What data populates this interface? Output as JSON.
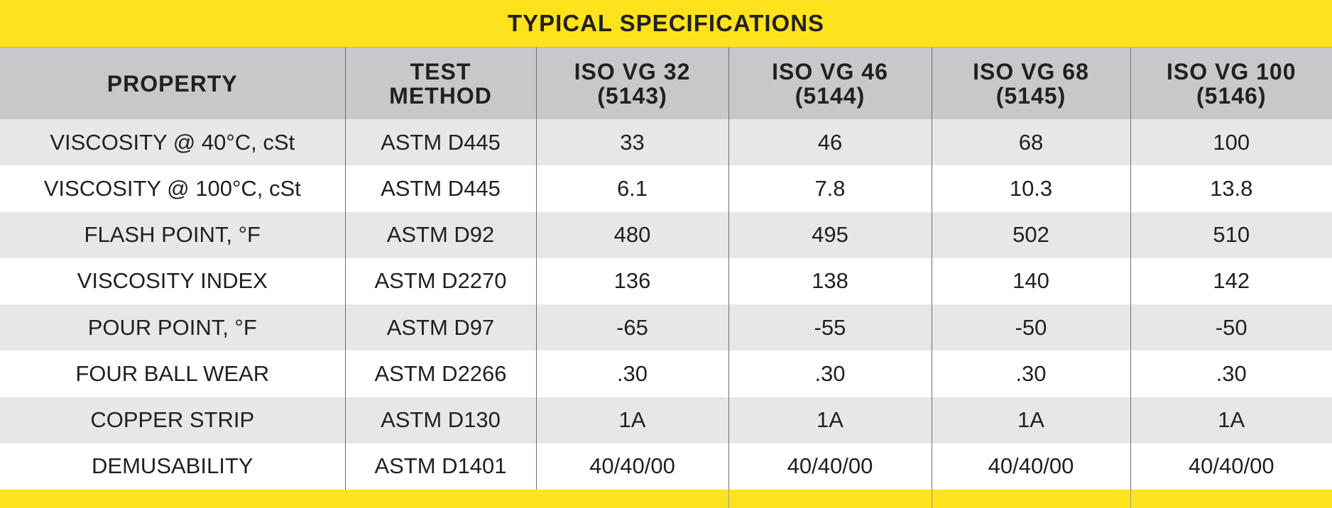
{
  "title": "TYPICAL SPECIFICATIONS",
  "table": {
    "header": [
      "PROPERTY",
      "TEST METHOD",
      "ISO VG 32 (5143)",
      "ISO VG 46 (5144)",
      "ISO VG 68 (5145)",
      "ISO VG 100 (5146)"
    ],
    "rows": [
      [
        "VISCOSITY @ 40°C, cSt",
        "ASTM D445",
        "33",
        "46",
        "68",
        "100"
      ],
      [
        "VISCOSITY @ 100°C, cSt",
        "ASTM D445",
        "6.1",
        "7.8",
        "10.3",
        "13.8"
      ],
      [
        "FLASH POINT, °F",
        "ASTM D92",
        "480",
        "495",
        "502",
        "510"
      ],
      [
        "VISCOSITY INDEX",
        "ASTM D2270",
        "136",
        "138",
        "140",
        "142"
      ],
      [
        "POUR POINT, °F",
        "ASTM D97",
        "-65",
        "-55",
        "-50",
        "-50"
      ],
      [
        "FOUR BALL WEAR",
        "ASTM D2266",
        ".30",
        ".30",
        ".30",
        ".30"
      ],
      [
        "COPPER STRIP",
        "ASTM D130",
        "1A",
        "1A",
        "1A",
        "1A"
      ],
      [
        "DEMUSABILITY",
        "ASTM D1401",
        "40/40/00",
        "40/40/00",
        "40/40/00",
        "40/40/00"
      ]
    ]
  }
}
